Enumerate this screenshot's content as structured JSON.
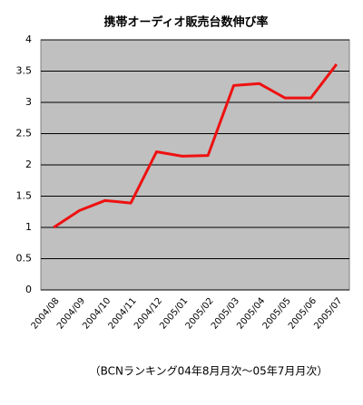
{
  "chart_data": {
    "type": "line",
    "title": "携帯オーディオ販売台数伸び率",
    "categories": [
      "2004/08",
      "2004/09",
      "2004/10",
      "2004/11",
      "2004/12",
      "2005/01",
      "2005/02",
      "2005/03",
      "2005/04",
      "2005/05",
      "2005/06",
      "2005/07"
    ],
    "values": [
      1.0,
      1.27,
      1.43,
      1.39,
      2.21,
      2.14,
      2.15,
      3.27,
      3.3,
      3.07,
      3.07,
      3.61
    ],
    "color": "#ee1111",
    "ylim": [
      0,
      4
    ],
    "yticks": [
      0,
      0.5,
      1,
      1.5,
      2,
      2.5,
      3,
      3.5,
      4
    ],
    "grid": true,
    "note": "（BCNランキング04年8月月次～05年7月月次）"
  }
}
